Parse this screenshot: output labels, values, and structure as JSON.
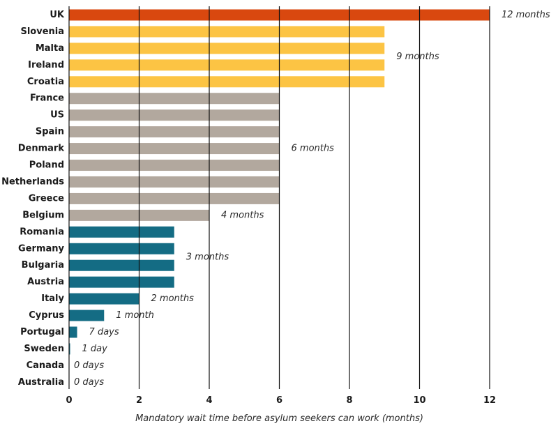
{
  "chart_data": {
    "type": "bar",
    "orientation": "horizontal",
    "xlabel": "Mandatory wait time before asylum seekers can work (months)",
    "ylabel": "",
    "xlim": [
      0,
      12
    ],
    "xticks": [
      "0",
      "2",
      "4",
      "6",
      "8",
      "10",
      "12"
    ],
    "grid": "vertical",
    "categories": [
      "UK",
      "Slovenia",
      "Malta",
      "Ireland",
      "Croatia",
      "France",
      "US",
      "Spain",
      "Denmark",
      "Poland",
      "Netherlands",
      "Greece",
      "Belgium",
      "Romania",
      "Germany",
      "Bulgaria",
      "Austria",
      "Italy",
      "Cyprus",
      "Portugal",
      "Sweden",
      "Canada",
      "Australia"
    ],
    "values": [
      12,
      9,
      9,
      9,
      9,
      6,
      6,
      6,
      6,
      6,
      6,
      6,
      4,
      3,
      3,
      3,
      3,
      2,
      1,
      0.23,
      0.03,
      0,
      0
    ],
    "bar_colors": [
      "#D9480F",
      "#FCC444",
      "#FCC444",
      "#FCC444",
      "#FCC444",
      "#B2A89E",
      "#B2A89E",
      "#B2A89E",
      "#B2A89E",
      "#B2A89E",
      "#B2A89E",
      "#B2A89E",
      "#B2A89E",
      "#146C84",
      "#146C84",
      "#146C84",
      "#146C84",
      "#146C84",
      "#146C84",
      "#146C84",
      "#146C84",
      "#146C84",
      "#146C84"
    ],
    "annotations": [
      {
        "text": "12 months",
        "row": 0,
        "value": 12
      },
      {
        "text": "9 months",
        "row": 2.5,
        "value": 9
      },
      {
        "text": "6 months",
        "row": 8,
        "value": 6
      },
      {
        "text": "4 months",
        "row": 12,
        "value": 4
      },
      {
        "text": "3 months",
        "row": 14.5,
        "value": 3
      },
      {
        "text": "2 months",
        "row": 17,
        "value": 2
      },
      {
        "text": "1 month",
        "row": 18,
        "value": 1
      },
      {
        "text": "7 days",
        "row": 19,
        "value": 0.23
      },
      {
        "text": "1 day",
        "row": 20,
        "value": 0.03
      },
      {
        "text": "0 days",
        "row": 21,
        "value": 0
      },
      {
        "text": "0 days",
        "row": 22,
        "value": 0
      }
    ]
  }
}
